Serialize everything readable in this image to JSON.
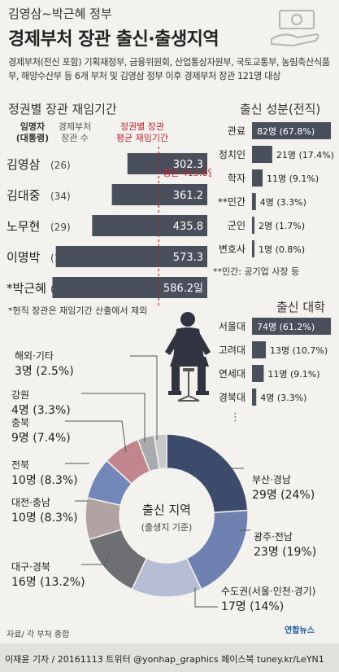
{
  "header": {
    "subtitle": "김영삼~박근혜 정부",
    "title": "경제부처 장관 출신·출생지역",
    "description": "경제부처(전신 포함) 기획재정부, 금융위원회, 산업통상자원부, 국토교통부, 농림축산식품부, 해양수산부 등 6개 부처 및 김영삼 정부 이후 경제부처 장관 121명 대상"
  },
  "tenure": {
    "title": "정권별 장관 재임기간",
    "col_president": "임명자\n(대통령)",
    "col_count": "경제부처\n장관 수",
    "col_avg": "정권별 장관\n평균 재임기간",
    "average_label": "평균 415.8일",
    "footnote": "*현직 장관은 재임기간 산출에서 제외"
  },
  "origin": {
    "title": "출신 성분(전직)",
    "footnote": "**민간: 공기업 사장 등"
  },
  "university": {
    "title": "출신 대학"
  },
  "region": {
    "center_title": "출신 지역",
    "center_sub": "(출생지 기준)"
  },
  "footer": {
    "source": "자료/ 각 부처 종합",
    "credit": "이재윤 기자 / 20161113  트위터 @yonhap_graphics  페이스북 tuney.kr/LeYN1",
    "logo": "연합뉴스"
  },
  "colors": {
    "bar": "#4a4f5c",
    "accent": "#c0242f",
    "pie": [
      "#3c4a6b",
      "#6f81b0",
      "#b6bdd5",
      "#6e6f73",
      "#b0a3a1",
      "#7387b8",
      "#c1868d",
      "#a9aaae",
      "#c9c9c9"
    ]
  },
  "chart_data": [
    {
      "type": "bar",
      "title": "정권별 장관 재임기간",
      "categories": [
        "김영삼",
        "김대중",
        "노무현",
        "이명박",
        "*박근혜"
      ],
      "counts": [
        "(26)",
        "(34)",
        "(29)",
        "(16)",
        "(16)"
      ],
      "values": [
        302.3,
        361.2,
        435.8,
        573.3,
        586.2
      ],
      "value_labels": [
        "302.3",
        "361.2",
        "435.8",
        "573.3",
        "586.2일"
      ],
      "average": 415.8,
      "xlim": [
        0,
        600
      ]
    },
    {
      "type": "bar",
      "title": "출신 성분(전직)",
      "categories": [
        "관료",
        "정치인",
        "학자",
        "**민간",
        "군인",
        "변호사"
      ],
      "values": [
        82,
        21,
        11,
        4,
        2,
        1
      ],
      "value_labels": [
        "82명 (67.8%)",
        "21명 (17.4%)",
        "11명 (9.1%)",
        "4명 (3.3%)",
        "2명 (1.7%)",
        "1명 (0.8%)"
      ]
    },
    {
      "type": "bar",
      "title": "출신 대학",
      "categories": [
        "서울대",
        "고려대",
        "연세대",
        "경북대"
      ],
      "values": [
        74,
        13,
        11,
        4
      ],
      "value_labels": [
        "74명 (61.2%)",
        "13명 (10.7%)",
        "11명 (9.1%)",
        "4명 (3.3%)"
      ]
    },
    {
      "type": "pie",
      "title": "출신 지역",
      "categories": [
        "부산·경남",
        "광주·전남",
        "수도권(서울·인천·경기)",
        "대구·경북",
        "대전·충남",
        "전북",
        "충북",
        "강원",
        "해외·기타"
      ],
      "values": [
        29,
        23,
        17,
        16,
        10,
        10,
        9,
        4,
        3
      ],
      "value_labels": [
        "29명 (24%)",
        "23명 (19%)",
        "17명 (14%)",
        "16명 (13.2%)",
        "10명 (8.3%)",
        "10명 (8.3%)",
        "9명 (7.4%)",
        "4명 (3.3%)",
        "3명 (2.5%)"
      ]
    }
  ]
}
